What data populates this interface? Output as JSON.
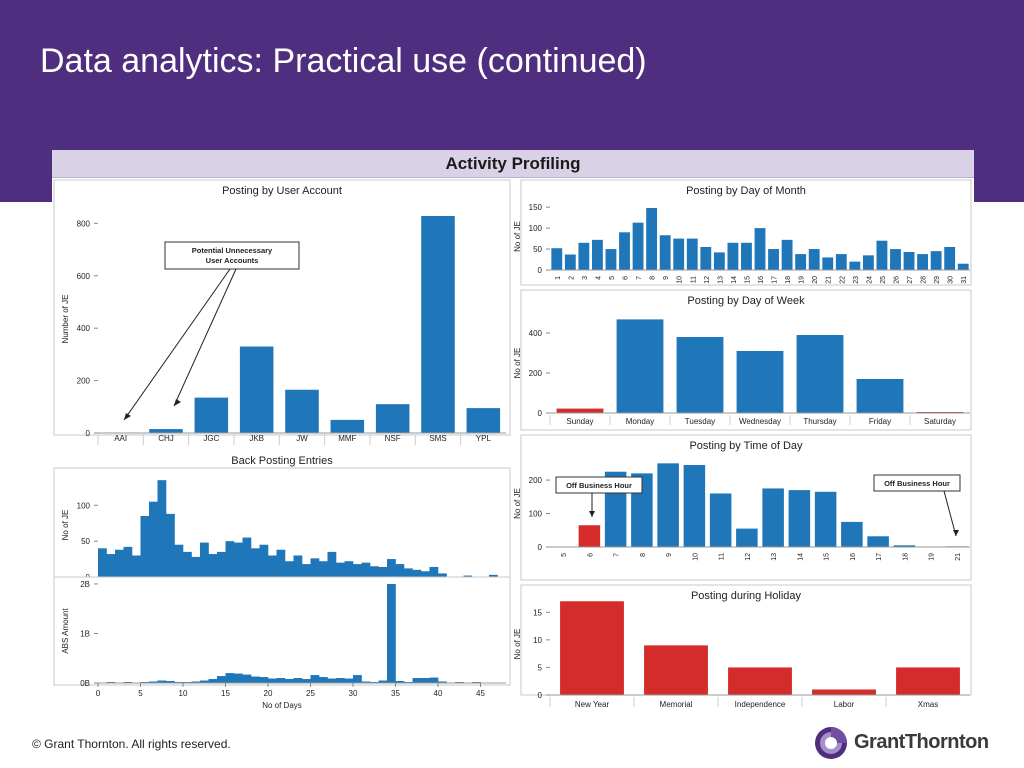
{
  "slide": {
    "title": "Data analytics: Practical use (continued)",
    "footer": "© Grant Thornton. All rights reserved.",
    "logo_text": "GrantThornton"
  },
  "dashboard": {
    "title": "Activity Profiling"
  },
  "colors": {
    "blue": "#1f76b9",
    "red": "#d42b2b",
    "purple": "#4f2d7f",
    "header_bg": "#d9d2e6"
  },
  "chart_data": [
    {
      "id": "user_account",
      "type": "bar",
      "title": "Posting by User Account",
      "xlabel": "",
      "ylabel": "Number of JE",
      "categories": [
        "AAI",
        "CHJ",
        "JGC",
        "JKB",
        "JW",
        "MMF",
        "NSF",
        "SMS",
        "YPL"
      ],
      "values": [
        2,
        15,
        135,
        330,
        165,
        50,
        110,
        828,
        95
      ],
      "yticks": [
        0,
        200,
        400,
        600,
        800
      ],
      "ylim": [
        0,
        870
      ],
      "annotation": {
        "text": [
          "Potential Unnecessary",
          "User Accounts"
        ],
        "targets": [
          "AAI",
          "CHJ"
        ]
      }
    },
    {
      "id": "day_of_month",
      "type": "bar",
      "title": "Posting by Day of Month",
      "ylabel": "No of JE",
      "categories": [
        "1",
        "2",
        "3",
        "4",
        "5",
        "6",
        "7",
        "8",
        "9",
        "10",
        "11",
        "12",
        "13",
        "14",
        "15",
        "16",
        "17",
        "18",
        "19",
        "20",
        "21",
        "22",
        "23",
        "24",
        "25",
        "26",
        "27",
        "28",
        "29",
        "30",
        "31"
      ],
      "values": [
        52,
        37,
        65,
        72,
        50,
        90,
        113,
        148,
        83,
        75,
        75,
        55,
        42,
        65,
        65,
        100,
        50,
        72,
        38,
        50,
        30,
        38,
        20,
        35,
        70,
        50,
        43,
        38,
        45,
        55,
        15
      ],
      "yticks": [
        0,
        50,
        100,
        150
      ],
      "ylim": [
        0,
        160
      ]
    },
    {
      "id": "day_of_week",
      "type": "bar",
      "title": "Posting by Day of Week",
      "ylabel": "No of JE",
      "categories": [
        "Sunday",
        "Monday",
        "Tuesday",
        "Wednesday",
        "Thursday",
        "Friday",
        "Saturday"
      ],
      "values": [
        22,
        468,
        380,
        310,
        390,
        170,
        5
      ],
      "highlight": [
        "Sunday",
        "Saturday"
      ],
      "yticks": [
        0,
        200,
        400
      ],
      "ylim": [
        0,
        500
      ]
    },
    {
      "id": "time_of_day",
      "type": "bar",
      "title": "Posting by Time of Day",
      "ylabel": "No of JE",
      "categories": [
        "5",
        "6",
        "7",
        "8",
        "9",
        "10",
        "11",
        "12",
        "13",
        "14",
        "15",
        "16",
        "17",
        "18",
        "19",
        "21"
      ],
      "values": [
        0,
        65,
        225,
        220,
        250,
        245,
        160,
        55,
        175,
        170,
        165,
        75,
        32,
        5,
        0,
        2
      ],
      "highlight": [
        "5",
        "6",
        "19",
        "21"
      ],
      "yticks": [
        0,
        100,
        200
      ],
      "ylim": [
        0,
        260
      ],
      "annotations": [
        "Off Business Hour",
        "Off Business Hour"
      ]
    },
    {
      "id": "back_posting",
      "type": "bar",
      "title": "Back Posting Entries",
      "ylabel": "No of JE",
      "xlabel": "No of Days",
      "x_range": [
        0,
        48
      ],
      "values": [
        40,
        32,
        38,
        42,
        30,
        85,
        105,
        135,
        88,
        45,
        35,
        28,
        48,
        32,
        35,
        50,
        48,
        55,
        40,
        45,
        30,
        38,
        22,
        30,
        18,
        26,
        22,
        35,
        20,
        22,
        18,
        20,
        15,
        14,
        25,
        18,
        12,
        10,
        8,
        14,
        5,
        0,
        0,
        2,
        0,
        0,
        3,
        0
      ],
      "yticks": [
        0,
        50,
        100
      ],
      "ylim": [
        0,
        145
      ]
    },
    {
      "id": "back_posting_amount",
      "type": "bar",
      "xlabel": "No of Days",
      "ylabel": "ABS Amount",
      "x_range": [
        0,
        48
      ],
      "values": [
        0.01,
        0.02,
        0.01,
        0.02,
        0.01,
        0.02,
        0.03,
        0.05,
        0.04,
        0.02,
        0.02,
        0.03,
        0.05,
        0.08,
        0.14,
        0.2,
        0.19,
        0.17,
        0.13,
        0.12,
        0.09,
        0.1,
        0.08,
        0.1,
        0.08,
        0.16,
        0.12,
        0.09,
        0.1,
        0.09,
        0.16,
        0.03,
        0.02,
        0.05,
        2.0,
        0.04,
        0.02,
        0.1,
        0.1,
        0.11,
        0.03,
        0.01,
        0.02,
        0.01,
        0.02,
        0.01,
        0.0,
        0.0
      ],
      "yticks": [
        0,
        1,
        2
      ],
      "ytick_labels": [
        "0B",
        "1B",
        "2B"
      ],
      "xticks": [
        0,
        5,
        10,
        15,
        20,
        25,
        30,
        35,
        40,
        45
      ],
      "ylim": [
        0,
        2.1
      ]
    },
    {
      "id": "holiday",
      "type": "bar",
      "title": "Posting during Holiday",
      "ylabel": "No of JE",
      "categories": [
        "New Year",
        "Memorial",
        "Independence",
        "Labor",
        "Xmas"
      ],
      "values": [
        17,
        9,
        5,
        1,
        5
      ],
      "yticks": [
        0,
        5,
        10,
        15
      ],
      "ylim": [
        0,
        18.5
      ]
    }
  ]
}
